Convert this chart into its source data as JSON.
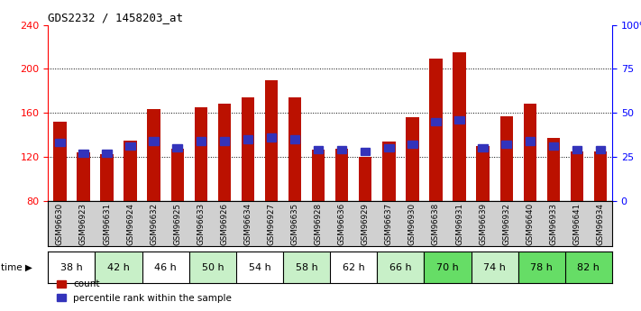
{
  "title": "GDS2232 / 1458203_at",
  "samples": [
    "GSM96630",
    "GSM96923",
    "GSM96631",
    "GSM96924",
    "GSM96632",
    "GSM96925",
    "GSM96633",
    "GSM96926",
    "GSM96634",
    "GSM96927",
    "GSM96635",
    "GSM96928",
    "GSM96636",
    "GSM96929",
    "GSM96637",
    "GSM96930",
    "GSM96638",
    "GSM96931",
    "GSM96639",
    "GSM96932",
    "GSM96640",
    "GSM96933",
    "GSM96641",
    "GSM96934"
  ],
  "time_groups": [
    {
      "label": "38 h",
      "indices": [
        0,
        1
      ],
      "color": "#ffffff"
    },
    {
      "label": "42 h",
      "indices": [
        2,
        3
      ],
      "color": "#c8f0c8"
    },
    {
      "label": "46 h",
      "indices": [
        4,
        5
      ],
      "color": "#ffffff"
    },
    {
      "label": "50 h",
      "indices": [
        6,
        7
      ],
      "color": "#c8f0c8"
    },
    {
      "label": "54 h",
      "indices": [
        8,
        9
      ],
      "color": "#ffffff"
    },
    {
      "label": "58 h",
      "indices": [
        10,
        11
      ],
      "color": "#c8f0c8"
    },
    {
      "label": "62 h",
      "indices": [
        12,
        13
      ],
      "color": "#ffffff"
    },
    {
      "label": "66 h",
      "indices": [
        14,
        15
      ],
      "color": "#c8f0c8"
    },
    {
      "label": "70 h",
      "indices": [
        16,
        17
      ],
      "color": "#66dd66"
    },
    {
      "label": "74 h",
      "indices": [
        18,
        19
      ],
      "color": "#c8f0c8"
    },
    {
      "label": "78 h",
      "indices": [
        20,
        21
      ],
      "color": "#66dd66"
    },
    {
      "label": "82 h",
      "indices": [
        22,
        23
      ],
      "color": "#66dd66"
    }
  ],
  "sample_row_color": "#d0d0d0",
  "count_values": [
    152,
    124,
    122,
    135,
    163,
    127,
    165,
    168,
    174,
    190,
    174,
    126,
    127,
    120,
    134,
    156,
    209,
    215,
    130,
    157,
    168,
    137,
    125,
    125
  ],
  "percentile_values": [
    33,
    27,
    27,
    31,
    34,
    30,
    34,
    34,
    35,
    36,
    35,
    29,
    29,
    28,
    30,
    32,
    45,
    46,
    30,
    32,
    34,
    31,
    29,
    29
  ],
  "bar_bottom": 80,
  "ylim_left": [
    80,
    240
  ],
  "ylim_right": [
    0,
    100
  ],
  "yticks_left": [
    80,
    120,
    160,
    200,
    240
  ],
  "yticks_right": [
    0,
    25,
    50,
    75,
    100
  ],
  "bar_color": "#bb1100",
  "percentile_color": "#3333bb",
  "bar_width": 0.55,
  "bg_color": "#ffffff"
}
